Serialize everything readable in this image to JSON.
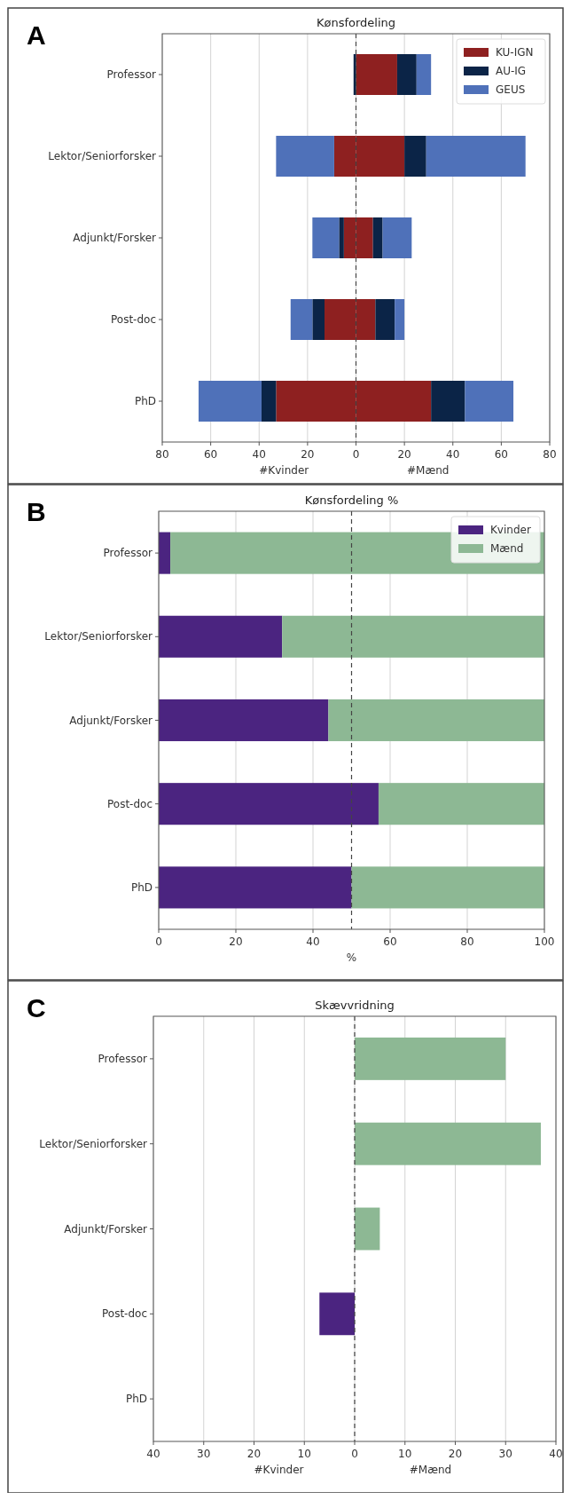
{
  "chart_data": [
    {
      "type": "bar",
      "orientation": "horizontal",
      "stacked": true,
      "title": "Kønsfordeling",
      "xlabel": "#Kvinder #Mænd",
      "annotations": [
        "A"
      ],
      "categories": [
        "Professor",
        "Lektor/Seniorforsker",
        "Adjunkt/Forsker",
        "Post-doc",
        "PhD"
      ],
      "series": [
        {
          "color": "#8e2020",
          "values": [
            0,
            -9,
            -5,
            -13,
            -33
          ]
        },
        {
          "name": "KU-IGN",
          "color": "#8e2020",
          "values": [
            17,
            20,
            7,
            8,
            31
          ]
        },
        {
          "color": "#0b2447",
          "values": [
            -1,
            0,
            -2,
            -5,
            -6
          ]
        },
        {
          "name": "AU-IG",
          "color": "#0b2447",
          "values": [
            8,
            9,
            4,
            8,
            14
          ]
        },
        {
          "color": "#4f71b9",
          "values": [
            0,
            -24,
            -11,
            -9,
            -26
          ]
        },
        {
          "name": "GEUS",
          "color": "#4f71b9",
          "values": [
            6,
            41,
            12,
            4,
            20
          ]
        }
      ],
      "xlim": [
        -80,
        80
      ],
      "xticks": [
        {
          "value": -80,
          "label": "80"
        },
        {
          "value": -60,
          "label": "60"
        },
        {
          "value": -40,
          "label": "40"
        },
        {
          "value": -20,
          "label": "20"
        },
        0,
        20,
        40,
        60,
        80
      ],
      "ref_lines": [
        {
          "axis": "x",
          "value": 0,
          "line_style": "dashed",
          "color": "#444444"
        }
      ],
      "grid": "x",
      "legend": "top right"
    },
    {
      "type": "bar",
      "orientation": "horizontal",
      "stacked": true,
      "title": "Kønsfordeling %",
      "xlabel": "%",
      "annotations": [
        "B"
      ],
      "categories": [
        "Professor",
        "Lektor/Seniorforsker",
        "Adjunkt/Forsker",
        "Post-doc",
        "PhD"
      ],
      "series": [
        {
          "name": "Kvinder",
          "color": "#4b2480",
          "values": [
            3,
            32,
            44,
            57,
            50
          ]
        },
        {
          "name": "Mænd",
          "color": "#8db894",
          "values": [
            97,
            68,
            56,
            43,
            50
          ]
        }
      ],
      "xlim": [
        0,
        100
      ],
      "xticks": [
        0,
        20,
        40,
        60,
        80,
        100
      ],
      "ref_lines": [
        {
          "axis": "x",
          "value": 50,
          "line_style": "dashed",
          "color": "#444444"
        }
      ],
      "grid": "x",
      "legend": "top right"
    },
    {
      "type": "bar",
      "orientation": "horizontal",
      "title": "Skævvridning",
      "xlabel": "#Kvinder #Mænd",
      "annotations": [
        "C"
      ],
      "categories": [
        "Professor",
        "Lektor/Seniorforsker",
        "Adjunkt/Forsker",
        "Post-doc",
        "PhD"
      ],
      "values": [
        30,
        37,
        5,
        -7,
        0
      ],
      "colors": [
        "#8db894",
        "#8db894",
        "#8db894",
        "#4b2480",
        "#8db894"
      ],
      "xlim": [
        -40,
        40
      ],
      "xticks": [
        {
          "value": -40,
          "label": "40"
        },
        {
          "value": -30,
          "label": "30"
        },
        {
          "value": -20,
          "label": "20"
        },
        {
          "value": -10,
          "label": "10"
        },
        0,
        10,
        20,
        30,
        40
      ],
      "ref_lines": [
        {
          "axis": "x",
          "value": 0,
          "line_style": "dashed",
          "color": "#444444"
        }
      ],
      "grid": "x"
    }
  ]
}
